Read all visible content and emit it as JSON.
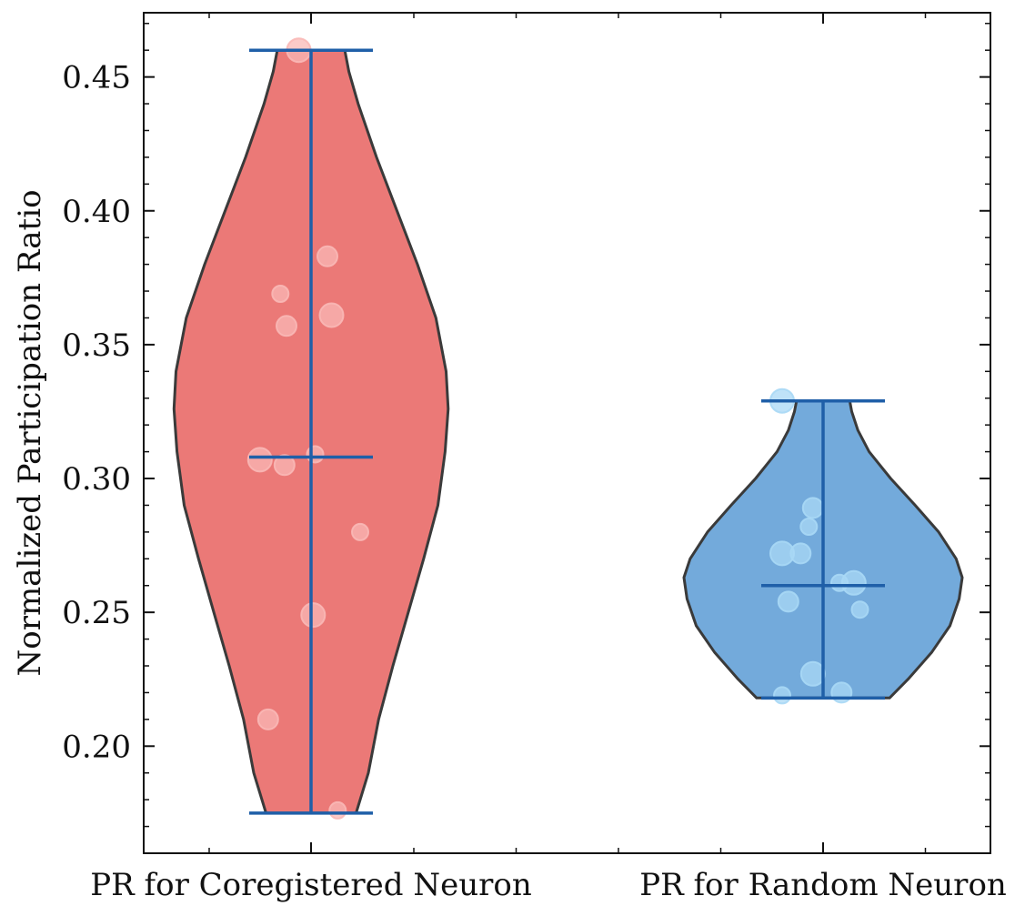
{
  "chart_data": {
    "type": "violin",
    "title": "",
    "xlabel": "",
    "ylabel": "Normalized Participation Ratio",
    "categories": [
      "PR for Coregistered Neuron",
      "PR for Random Neuron"
    ],
    "ylim": [
      0.16,
      0.474
    ],
    "yticks": [
      0.2,
      0.25,
      0.3,
      0.35,
      0.4,
      0.45
    ],
    "ytick_labels": [
      "0.20",
      "0.25",
      "0.30",
      "0.35",
      "0.40",
      "0.45"
    ],
    "grid": false,
    "series": [
      {
        "stats": {
          "min": 0.175,
          "median": 0.308,
          "max": 0.46
        },
        "fill_color": "#e8615f",
        "point_color": "#f9b8b6",
        "points": [
          {
            "x": -0.12,
            "y": 0.46
          },
          {
            "x": 0.16,
            "y": 0.383
          },
          {
            "x": -0.3,
            "y": 0.369
          },
          {
            "x": 0.2,
            "y": 0.361
          },
          {
            "x": -0.24,
            "y": 0.357
          },
          {
            "x": 0.04,
            "y": 0.309
          },
          {
            "x": -0.5,
            "y": 0.307
          },
          {
            "x": -0.26,
            "y": 0.305
          },
          {
            "x": 0.48,
            "y": 0.28
          },
          {
            "x": 0.02,
            "y": 0.249
          },
          {
            "x": -0.42,
            "y": 0.21
          },
          {
            "x": 0.26,
            "y": 0.176
          }
        ],
        "density": [
          [
            0.175,
            0.44
          ],
          [
            0.19,
            0.56
          ],
          [
            0.21,
            0.66
          ],
          [
            0.23,
            0.8
          ],
          [
            0.25,
            0.95
          ],
          [
            0.27,
            1.1
          ],
          [
            0.29,
            1.24
          ],
          [
            0.31,
            1.31
          ],
          [
            0.326,
            1.34
          ],
          [
            0.34,
            1.32
          ],
          [
            0.36,
            1.22
          ],
          [
            0.38,
            1.04
          ],
          [
            0.4,
            0.84
          ],
          [
            0.42,
            0.64
          ],
          [
            0.44,
            0.46
          ],
          [
            0.452,
            0.37
          ],
          [
            0.46,
            0.33
          ]
        ]
      },
      {
        "stats": {
          "min": 0.218,
          "median": 0.26,
          "max": 0.329
        },
        "fill_color": "#5b9bd5",
        "point_color": "#a9d8f5",
        "points": [
          {
            "x": -0.4,
            "y": 0.329
          },
          {
            "x": -0.1,
            "y": 0.289
          },
          {
            "x": -0.14,
            "y": 0.282
          },
          {
            "x": -0.4,
            "y": 0.272
          },
          {
            "x": -0.22,
            "y": 0.272
          },
          {
            "x": 0.16,
            "y": 0.261
          },
          {
            "x": 0.3,
            "y": 0.261
          },
          {
            "x": -0.34,
            "y": 0.254
          },
          {
            "x": 0.36,
            "y": 0.251
          },
          {
            "x": -0.1,
            "y": 0.227
          },
          {
            "x": 0.18,
            "y": 0.22
          },
          {
            "x": -0.4,
            "y": 0.219
          }
        ],
        "density": [
          [
            0.218,
            0.65
          ],
          [
            0.225,
            0.83
          ],
          [
            0.235,
            1.06
          ],
          [
            0.245,
            1.24
          ],
          [
            0.255,
            1.33
          ],
          [
            0.263,
            1.36
          ],
          [
            0.27,
            1.3
          ],
          [
            0.28,
            1.13
          ],
          [
            0.29,
            0.9
          ],
          [
            0.3,
            0.66
          ],
          [
            0.31,
            0.45
          ],
          [
            0.318,
            0.34
          ],
          [
            0.325,
            0.28
          ],
          [
            0.329,
            0.26
          ]
        ]
      }
    ]
  }
}
